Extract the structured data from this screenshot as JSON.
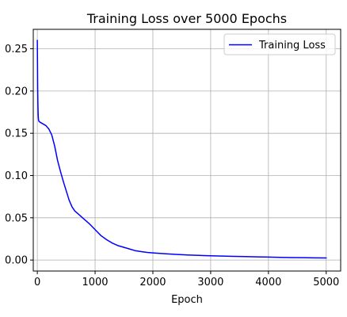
{
  "chart_data": {
    "type": "line",
    "title": "Training Loss over 5000 Epochs",
    "xlabel": "Epoch",
    "ylabel": "",
    "xlim": [
      -70,
      5250
    ],
    "ylim": [
      -0.013,
      0.273
    ],
    "xticks": [
      0,
      1000,
      2000,
      3000,
      4000,
      5000
    ],
    "yticks": [
      0.0,
      0.05,
      0.1,
      0.15,
      0.2,
      0.25
    ],
    "xtick_labels": [
      "0",
      "1000",
      "2000",
      "3000",
      "4000",
      "5000"
    ],
    "ytick_labels": [
      "0.00",
      "0.05",
      "0.10",
      "0.15",
      "0.20",
      "0.25"
    ],
    "grid": true,
    "legend_position": "top-right",
    "series": [
      {
        "name": "Training Loss",
        "color": "#0000ff",
        "x": [
          0,
          3,
          6,
          10,
          15,
          20,
          30,
          50,
          100,
          150,
          200,
          250,
          300,
          350,
          400,
          450,
          500,
          550,
          600,
          650,
          700,
          750,
          800,
          900,
          1000,
          1100,
          1200,
          1300,
          1400,
          1500,
          1600,
          1700,
          1800,
          1900,
          2000,
          2200,
          2400,
          2600,
          2800,
          3000,
          3200,
          3400,
          3600,
          3800,
          4000,
          4200,
          4400,
          4600,
          4800,
          5000
        ],
        "values": [
          0.26,
          0.235,
          0.205,
          0.185,
          0.172,
          0.166,
          0.164,
          0.163,
          0.161,
          0.159,
          0.155,
          0.148,
          0.135,
          0.118,
          0.105,
          0.093,
          0.082,
          0.071,
          0.063,
          0.058,
          0.055,
          0.052,
          0.049,
          0.043,
          0.036,
          0.029,
          0.024,
          0.02,
          0.017,
          0.015,
          0.013,
          0.011,
          0.01,
          0.009,
          0.0085,
          0.0075,
          0.0067,
          0.006,
          0.0055,
          0.005,
          0.0047,
          0.0044,
          0.0041,
          0.0038,
          0.0035,
          0.0032,
          0.003,
          0.0028,
          0.0026,
          0.0025
        ]
      }
    ]
  }
}
